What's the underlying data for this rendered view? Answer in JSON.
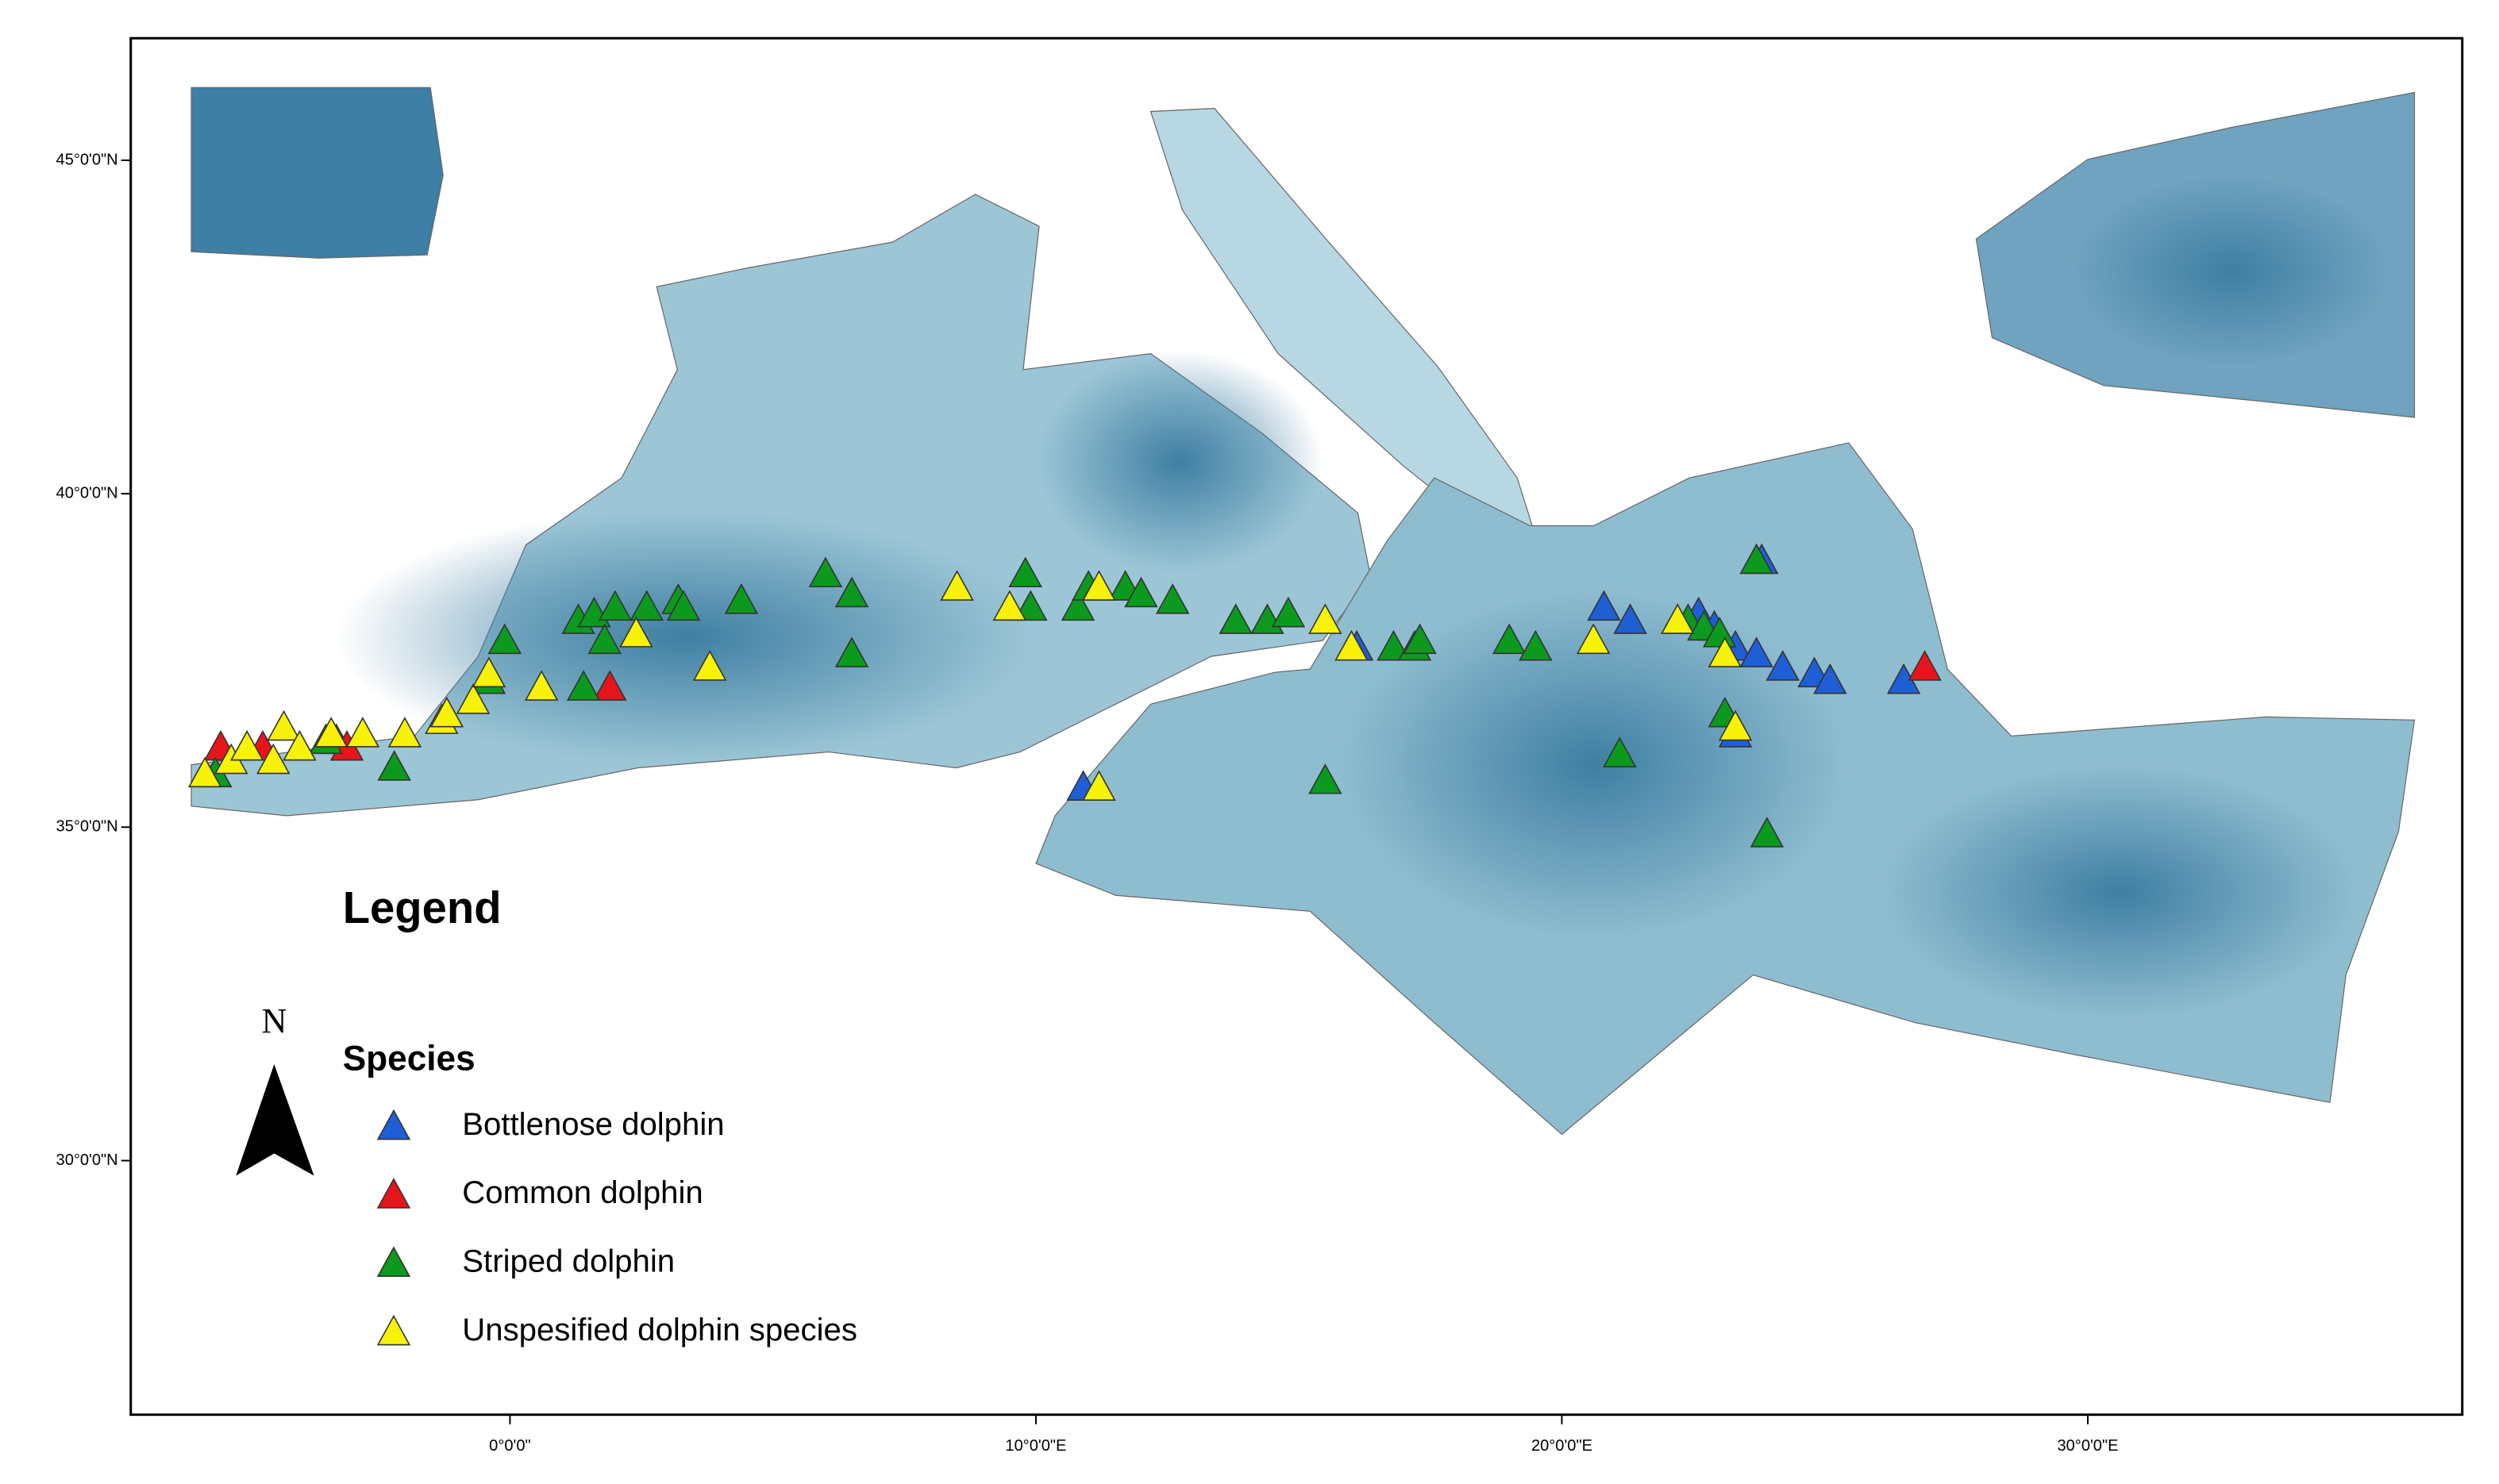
{
  "chart_data": {
    "type": "scatter",
    "legend_title": "Legend",
    "legend_subtitle": "Species",
    "north_label": "N",
    "xlim": [
      -7.21,
      37.12
    ],
    "ylim": [
      26.19,
      46.83
    ],
    "xticks": [
      {
        "value": 0,
        "label": "0°0'0\""
      },
      {
        "value": 10,
        "label": "10°0'0\"E"
      },
      {
        "value": 20,
        "label": "20°0'0\"E"
      },
      {
        "value": 30,
        "label": "30°0'0\"E"
      }
    ],
    "yticks": [
      {
        "value": 30,
        "label": "30°0'0\"N"
      },
      {
        "value": 35,
        "label": "35°0'0\"N"
      },
      {
        "value": 40,
        "label": "40°0'0\"N"
      },
      {
        "value": 45,
        "label": "45°0'0\"N"
      }
    ],
    "series": [
      {
        "name": "Bottlenose dolphin",
        "color": "#1f5fd6",
        "x": [
          10.9,
          16.1,
          20.8,
          21.3,
          22.6,
          22.9,
          23.3,
          23.7,
          24.2,
          24.8,
          25.1,
          23.3,
          26.5,
          23.8
        ],
        "y": [
          35.6,
          37.7,
          38.3,
          38.1,
          38.2,
          38.0,
          37.7,
          37.6,
          37.4,
          37.3,
          37.2,
          36.4,
          37.2,
          39.0
        ]
      },
      {
        "name": "Common dolphin",
        "color": "#e8141b",
        "x": [
          -5.5,
          -4.7,
          -3.3,
          -3.1,
          1.9,
          26.9
        ],
        "y": [
          36.2,
          36.2,
          36.3,
          36.2,
          37.1,
          37.4
        ]
      },
      {
        "name": "Striped dolphin",
        "color": "#0c9a1e",
        "x": [
          -5.6,
          -3.5,
          -2.2,
          -0.4,
          -0.1,
          1.4,
          1.3,
          1.6,
          1.8,
          2.0,
          2.6,
          3.2,
          3.3,
          4.4,
          6.0,
          6.5,
          6.5,
          9.8,
          9.9,
          10.8,
          11.0,
          11.7,
          12.0,
          12.6,
          13.8,
          14.4,
          14.8,
          15.5,
          16.8,
          17.2,
          17.3,
          19.0,
          19.5,
          21.1,
          22.4,
          22.7,
          23.0,
          23.1,
          23.7,
          23.9
        ],
        "y": [
          35.8,
          36.3,
          35.9,
          37.2,
          37.8,
          37.1,
          38.1,
          38.2,
          37.8,
          38.3,
          38.3,
          38.4,
          38.3,
          38.4,
          38.8,
          38.5,
          37.6,
          38.8,
          38.3,
          38.3,
          38.6,
          38.6,
          38.5,
          38.4,
          38.1,
          38.1,
          38.2,
          35.7,
          37.7,
          37.7,
          37.8,
          37.8,
          37.7,
          36.1,
          38.1,
          38.0,
          37.9,
          36.7,
          39.0,
          34.9
        ]
      },
      {
        "name": "Unspesified dolphin species",
        "color": "#f7f207",
        "x": [
          -5.8,
          -5.3,
          -5.0,
          -4.5,
          -4.3,
          -4.0,
          -3.4,
          -2.8,
          -2.0,
          -1.3,
          -1.2,
          -0.7,
          -0.4,
          0.6,
          2.4,
          3.8,
          8.5,
          9.5,
          11.2,
          11.2,
          15.5,
          16.0,
          20.6,
          22.2,
          23.1,
          23.3
        ],
        "y": [
          35.8,
          36.0,
          36.2,
          36.0,
          36.5,
          36.2,
          36.4,
          36.4,
          36.4,
          36.6,
          36.7,
          36.9,
          37.3,
          37.1,
          37.9,
          37.4,
          38.6,
          38.3,
          38.6,
          35.6,
          38.1,
          37.7,
          37.8,
          38.1,
          37.6,
          36.5
        ]
      }
    ]
  }
}
